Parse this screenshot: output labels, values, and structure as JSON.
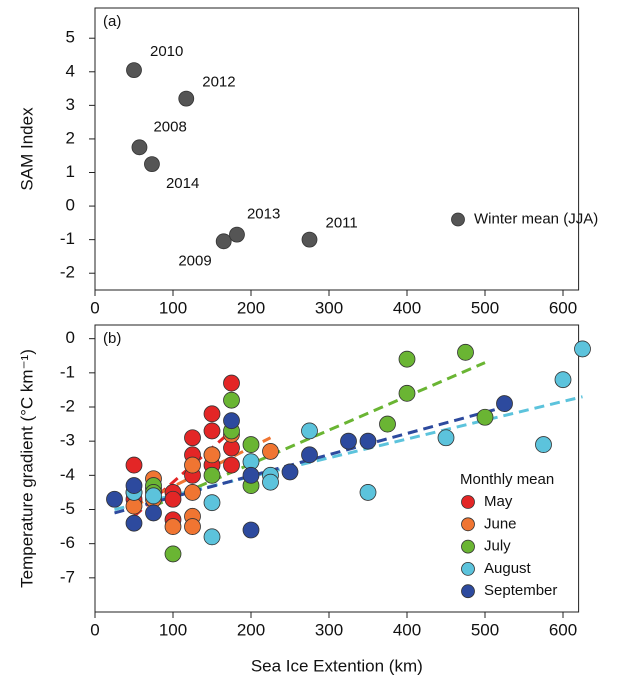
{
  "chart_data": [
    {
      "type": "scatter",
      "panel_label": "(a)",
      "y_label": "SAM Index",
      "xlim": [
        0,
        620
      ],
      "xticks": [
        0,
        100,
        200,
        300,
        400,
        500,
        600
      ],
      "ylim": [
        -2.5,
        5.9
      ],
      "yticks": [
        -2,
        -1,
        0,
        1,
        2,
        3,
        4,
        5
      ],
      "legend": "right",
      "series": [
        {
          "name": "Winter mean (JJA)",
          "color": "#555555",
          "x": [
            50,
            117,
            57,
            73,
            165,
            182,
            275
          ],
          "values": [
            4.05,
            3.2,
            1.75,
            1.25,
            -1.05,
            -0.85,
            -1.0
          ],
          "labels": [
            "2010",
            "2012",
            "2008",
            "2014",
            "2009",
            "2013",
            "2011"
          ]
        }
      ]
    },
    {
      "type": "scatter",
      "panel_label": "(b)",
      "y_label": "Temperature gradient (°C km⁻¹)",
      "x_label": "Sea Ice Extention (km)",
      "xlim": [
        0,
        620
      ],
      "xticks": [
        0,
        100,
        200,
        300,
        400,
        500,
        600
      ],
      "ylim": [
        -8.0,
        0.4
      ],
      "yticks": [
        -7,
        -6,
        -5,
        -4,
        -3,
        -2,
        -1,
        0
      ],
      "legend_title": "Monthly mean",
      "legend": "lower right",
      "series": [
        {
          "name": "May",
          "color": "#e32626",
          "x": [
            50,
            50,
            50,
            75,
            100,
            100,
            100,
            125,
            125,
            125,
            150,
            150,
            150,
            150,
            175,
            175,
            175
          ],
          "values": [
            -3.7,
            -4.5,
            -4.7,
            -4.4,
            -4.5,
            -4.7,
            -5.3,
            -2.9,
            -3.4,
            -4.0,
            -2.2,
            -2.7,
            -3.4,
            -3.7,
            -1.3,
            -3.2,
            -3.7
          ],
          "fit_x": [
            50,
            175
          ],
          "fit_y": [
            -5.2,
            -2.7
          ]
        },
        {
          "name": "June",
          "color": "#f07532",
          "x": [
            50,
            75,
            75,
            100,
            125,
            125,
            125,
            125,
            150,
            175,
            225
          ],
          "values": [
            -4.9,
            -4.1,
            -4.7,
            -5.5,
            -3.7,
            -4.5,
            -5.2,
            -5.5,
            -3.4,
            -2.8,
            -3.3
          ],
          "fit_x": [
            50,
            225
          ],
          "fit_y": [
            -4.9,
            -2.9
          ]
        },
        {
          "name": "July",
          "color": "#6ab533",
          "x": [
            75,
            75,
            100,
            150,
            175,
            175,
            200,
            200,
            375,
            400,
            400,
            475,
            500
          ],
          "values": [
            -4.3,
            -4.5,
            -6.3,
            -4.0,
            -1.8,
            -2.7,
            -3.1,
            -4.3,
            -2.5,
            -0.6,
            -1.6,
            -0.4,
            -2.3
          ],
          "fit_x": [
            75,
            500
          ],
          "fit_y": [
            -4.9,
            -0.7
          ]
        },
        {
          "name": "August",
          "color": "#5cc3dc",
          "x": [
            50,
            75,
            150,
            150,
            200,
            225,
            225,
            275,
            350,
            450,
            575,
            600,
            625
          ],
          "values": [
            -4.5,
            -4.6,
            -4.8,
            -5.8,
            -3.6,
            -4.0,
            -4.2,
            -2.7,
            -4.5,
            -2.9,
            -3.1,
            -1.2,
            -0.3
          ],
          "fit_x": [
            25,
            625
          ],
          "fit_y": [
            -5.0,
            -1.7
          ]
        },
        {
          "name": "September",
          "color": "#2d4a9e",
          "x": [
            25,
            50,
            50,
            75,
            175,
            200,
            200,
            250,
            275,
            325,
            350,
            525
          ],
          "values": [
            -4.7,
            -4.3,
            -5.4,
            -5.1,
            -2.4,
            -4.0,
            -5.6,
            -3.9,
            -3.4,
            -3.0,
            -3.0,
            -1.9
          ],
          "fit_x": [
            25,
            525
          ],
          "fit_y": [
            -5.1,
            -2.0
          ]
        }
      ]
    }
  ]
}
